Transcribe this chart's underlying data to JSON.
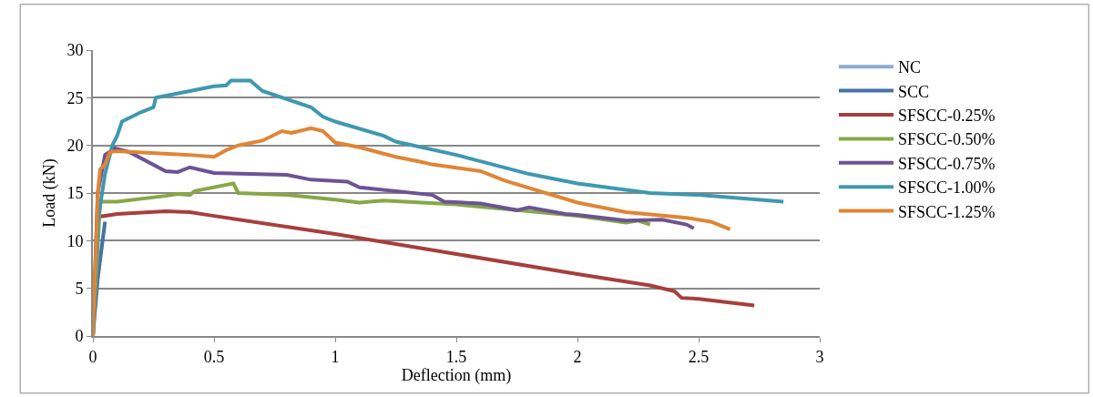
{
  "chart_data": {
    "type": "line",
    "xlabel": "Deflection (mm)",
    "ylabel": "Load (kN)",
    "xlim": [
      0,
      3
    ],
    "xticks": [
      0,
      0.5,
      1,
      1.5,
      2,
      2.5,
      3
    ],
    "ylim": [
      0,
      30
    ],
    "yticks": [
      0,
      5,
      10,
      15,
      20,
      25,
      30
    ],
    "grid": "y",
    "legend": "right",
    "marker": "none",
    "line_style": "solid",
    "series": [
      {
        "name": "NC",
        "color": "#8eaad6"
      },
      {
        "name": "SCC",
        "color": "#4472aa",
        "x": [
          0,
          0.02,
          0.04,
          0.05
        ],
        "values": [
          0,
          6,
          10,
          12
        ]
      },
      {
        "name": "SFSCC-0.25%",
        "color": "#a63f3c",
        "x": [
          0,
          0.02,
          0.1,
          0.3,
          0.4,
          0.5,
          1.0,
          1.5,
          2.0,
          2.3,
          2.4,
          2.43,
          2.5,
          2.73
        ],
        "values": [
          0,
          12.5,
          12.8,
          13.1,
          13.0,
          12.6,
          10.7,
          8.6,
          6.5,
          5.3,
          4.7,
          4.0,
          3.9,
          3.2
        ]
      },
      {
        "name": "SFSCC-0.50%",
        "color": "#86a847",
        "x": [
          0,
          0.03,
          0.1,
          0.3,
          0.35,
          0.4,
          0.42,
          0.58,
          0.6,
          0.8,
          1.0,
          1.1,
          1.2,
          1.5,
          2.0,
          2.2,
          2.25,
          2.3
        ],
        "values": [
          0,
          14.1,
          14.1,
          14.7,
          14.9,
          14.8,
          15.2,
          16.0,
          15.0,
          14.8,
          14.3,
          14.0,
          14.2,
          13.8,
          12.6,
          11.9,
          12.1,
          11.7
        ]
      },
      {
        "name": "SFSCC-0.75%",
        "color": "#6c5394",
        "x": [
          0,
          0.02,
          0.05,
          0.09,
          0.15,
          0.3,
          0.35,
          0.4,
          0.5,
          0.8,
          0.9,
          1.05,
          1.1,
          1.4,
          1.45,
          1.6,
          1.75,
          1.8,
          1.95,
          2.0,
          2.2,
          2.35,
          2.45,
          2.48
        ],
        "values": [
          0,
          15,
          19,
          19.7,
          19.3,
          17.3,
          17.2,
          17.7,
          17.1,
          16.9,
          16.4,
          16.2,
          15.6,
          14.8,
          14.1,
          13.9,
          13.2,
          13.5,
          12.8,
          12.7,
          12.1,
          12.2,
          11.7,
          11.3
        ]
      },
      {
        "name": "SFSCC-1.00%",
        "color": "#3e98b0",
        "x": [
          0,
          0.02,
          0.05,
          0.08,
          0.1,
          0.12,
          0.2,
          0.25,
          0.26,
          0.4,
          0.5,
          0.55,
          0.57,
          0.65,
          0.7,
          0.9,
          0.95,
          1.0,
          1.2,
          1.25,
          1.5,
          1.8,
          2.0,
          2.3,
          2.5,
          2.85
        ],
        "values": [
          0,
          12,
          17,
          20,
          21,
          22.5,
          23.5,
          24,
          25,
          25.7,
          26.2,
          26.3,
          26.8,
          26.8,
          25.7,
          24,
          23.0,
          22.5,
          21,
          20.4,
          19,
          17,
          16,
          15,
          14.8,
          14.1
        ]
      },
      {
        "name": "SFSCC-1.25%",
        "color": "#e08535",
        "x": [
          0,
          0.02,
          0.03,
          0.05,
          0.07,
          0.1,
          0.4,
          0.5,
          0.55,
          0.6,
          0.7,
          0.78,
          0.82,
          0.9,
          0.95,
          1.0,
          1.1,
          1.25,
          1.35,
          1.4,
          1.6,
          1.7,
          2.0,
          2.2,
          2.45,
          2.55,
          2.63
        ],
        "values": [
          0,
          15,
          17.5,
          18.0,
          19.3,
          19.4,
          19.0,
          18.8,
          19.5,
          20,
          20.5,
          21.5,
          21.3,
          21.8,
          21.5,
          20.3,
          19.8,
          18.8,
          18.3,
          18,
          17.3,
          16.3,
          14.0,
          13.0,
          12.4,
          12.0,
          11.2
        ]
      }
    ]
  }
}
